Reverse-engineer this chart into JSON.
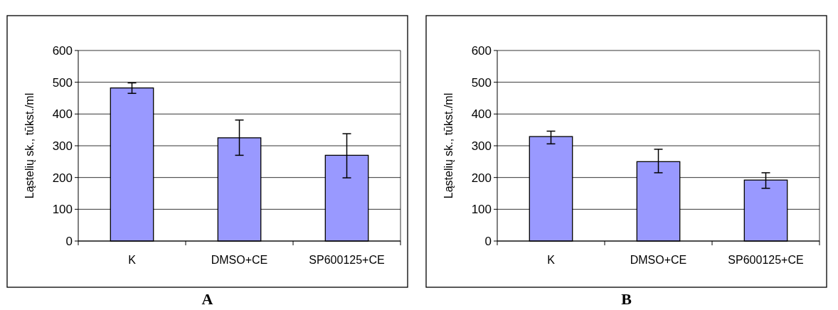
{
  "chart_data": [
    {
      "type": "bar",
      "title": "A",
      "ylabel": "Ląstelių sk., tūkst./ml",
      "categories": [
        "K",
        "DMSO+CE",
        "SP600125+CE"
      ],
      "values": [
        482,
        325,
        270
      ],
      "errors": [
        [
          465,
          498
        ],
        [
          270,
          381
        ],
        [
          199,
          338
        ]
      ],
      "color": "#9999ff",
      "ylim": [
        0,
        600
      ],
      "yticks": [
        0,
        100,
        200,
        300,
        400,
        500,
        600
      ],
      "grid": "y"
    },
    {
      "type": "bar",
      "title": "B",
      "ylabel": "Ląstelių sk., tūkst./ml",
      "categories": [
        "K",
        "DMSO+CE",
        "SP600125+CE"
      ],
      "values": [
        329,
        250,
        192
      ],
      "errors": [
        [
          306,
          346
        ],
        [
          215,
          289
        ],
        [
          166,
          215
        ]
      ],
      "color": "#9999ff",
      "ylim": [
        0,
        600
      ],
      "yticks": [
        0,
        100,
        200,
        300,
        400,
        500,
        600
      ],
      "grid": "y"
    }
  ]
}
